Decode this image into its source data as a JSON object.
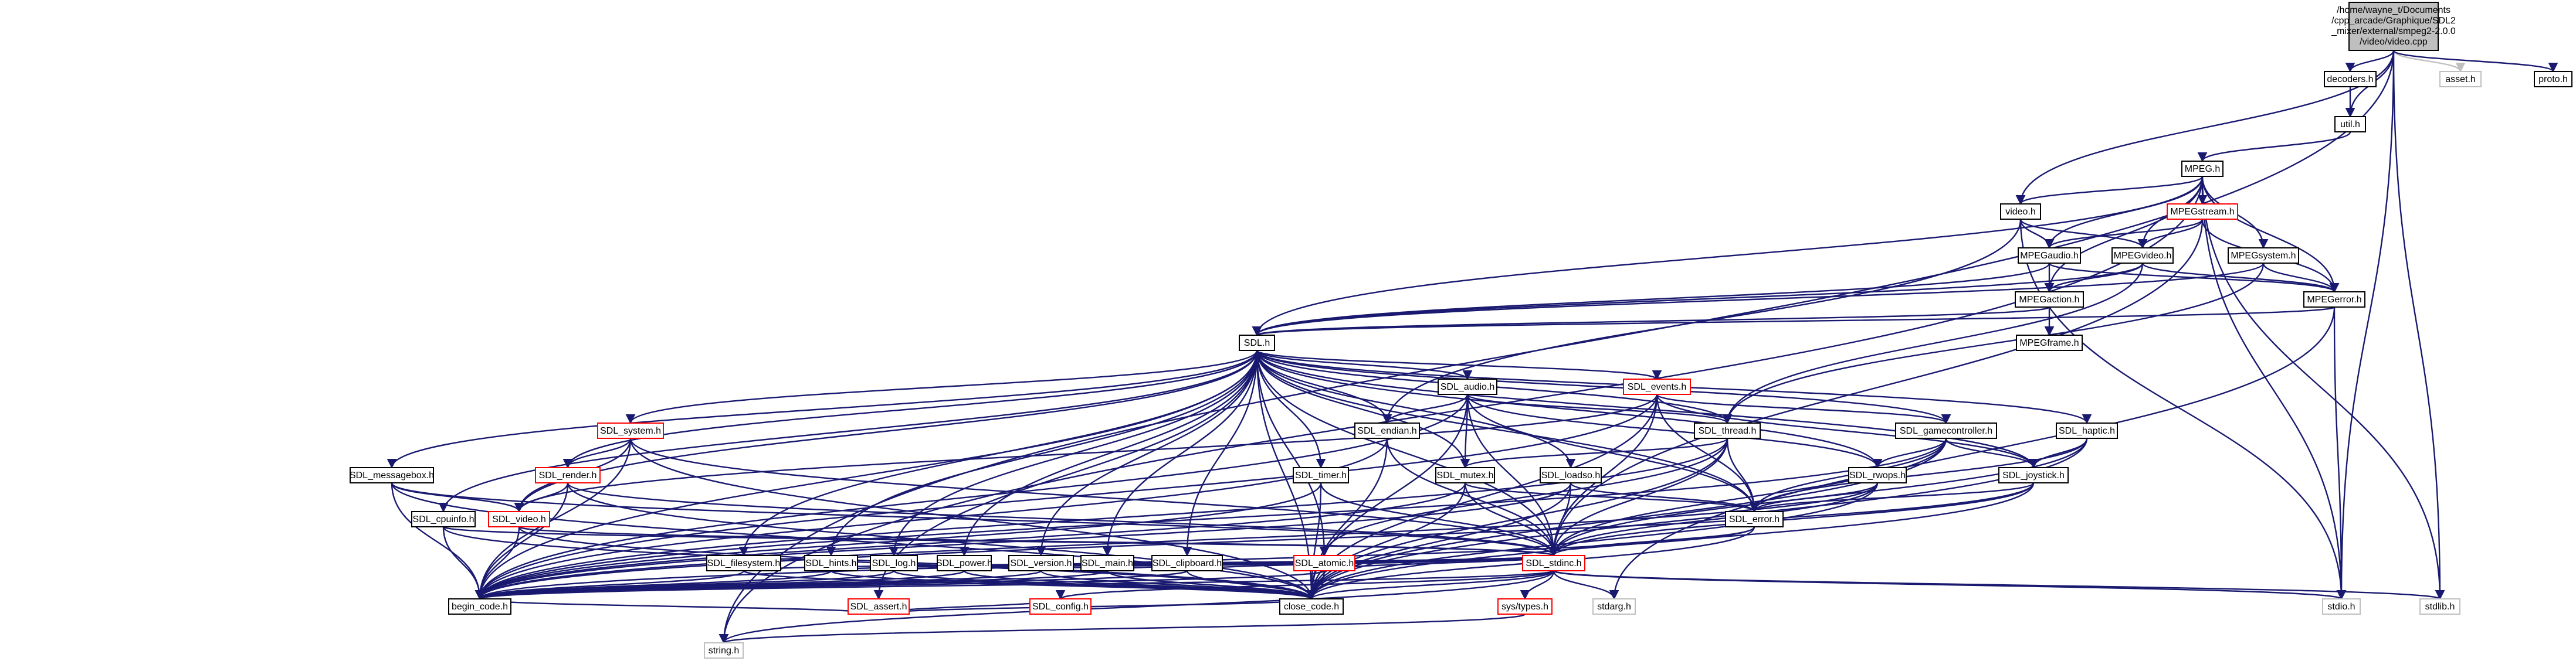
{
  "root_lines": [
    "/home/wayne_t/Documents",
    "/cpp_arcade/Graphique/SDL2",
    "_mixer/external/smpeg2-2.0.0",
    "/video/video.cpp"
  ],
  "colors": {
    "edge": "#191970",
    "edge_grey": "#c0c0c0",
    "missing_border": "#ff0000",
    "external_border": "#bfbfbf",
    "root_fill": "#bfbfbf"
  },
  "nodes": {
    "decoders_h": "decoders.h",
    "asset_h": "asset.h",
    "proto_h": "proto.h",
    "util_h": "util.h",
    "MPEG_h": "MPEG.h",
    "video_h": "video.h",
    "MPEGstream_h": "MPEGstream.h",
    "MPEGaudio_h": "MPEGaudio.h",
    "MPEGvideo_h": "MPEGvideo.h",
    "MPEGsystem_h": "MPEGsystem.h",
    "MPEGaction_h": "MPEGaction.h",
    "MPEGerror_h": "MPEGerror.h",
    "MPEGframe_h": "MPEGframe.h",
    "SDL_h": "SDL.h",
    "SDL_audio_h": "SDL_audio.h",
    "SDL_events_h": "SDL_events.h",
    "SDL_system_h": "SDL_system.h",
    "SDL_endian_h": "SDL_endian.h",
    "SDL_thread_h": "SDL_thread.h",
    "SDL_gamecontroller_h": "SDL_gamecontroller.h",
    "SDL_haptic_h": "SDL_haptic.h",
    "SDL_messagebox_h": "SDL_messagebox.h",
    "SDL_render_h": "SDL_render.h",
    "SDL_timer_h": "SDL_timer.h",
    "SDL_mutex_h": "SDL_mutex.h",
    "SDL_loadso_h": "SDL_loadso.h",
    "SDL_rwops_h": "SDL_rwops.h",
    "SDL_joystick_h": "SDL_joystick.h",
    "SDL_cpuinfo_h": "SDL_cpuinfo.h",
    "SDL_video_h": "SDL_video.h",
    "SDL_error_h": "SDL_error.h",
    "SDL_filesystem_h": "SDL_filesystem.h",
    "SDL_hints_h": "SDL_hints.h",
    "SDL_log_h": "SDL_log.h",
    "SDL_power_h": "SDL_power.h",
    "SDL_version_h": "SDL_version.h",
    "SDL_main_h": "SDL_main.h",
    "SDL_clipboard_h": "SDL_clipboard.h",
    "SDL_atomic_h": "SDL_atomic.h",
    "SDL_stdinc_h": "SDL_stdinc.h",
    "SDL_assert_h": "SDL_assert.h",
    "SDL_config_h": "SDL_config.h",
    "begin_code_h": "begin_code.h",
    "close_code_h": "close_code.h",
    "sys_types_h": "sys/types.h",
    "stdarg_h": "stdarg.h",
    "stdio_h": "stdio.h",
    "stdlib_h": "stdlib.h",
    "string_h": "string.h"
  }
}
